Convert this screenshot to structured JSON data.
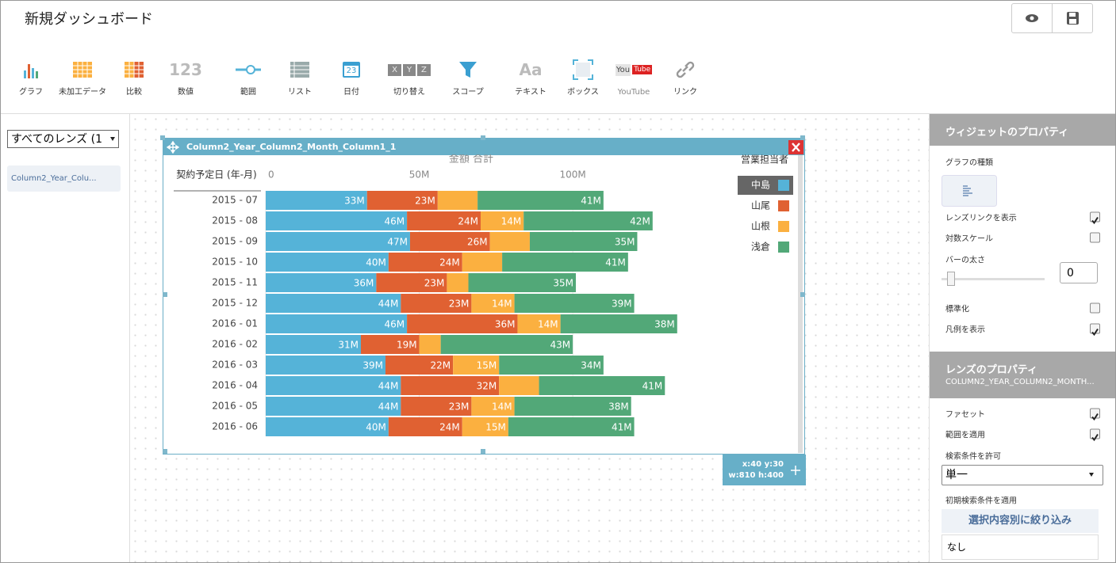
{
  "header": {
    "title": "新規ダッシュボード"
  },
  "toolbar": [
    {
      "label": "グラフ"
    },
    {
      "label": "未加工データ"
    },
    {
      "label": "比較"
    },
    {
      "label": "数値",
      "icon_text": [
        "123"
      ]
    },
    {
      "label": "範囲"
    },
    {
      "label": "リスト"
    },
    {
      "label": "日付",
      "icon_text": [
        "23"
      ]
    },
    {
      "label": "切り替え",
      "icon_text": [
        "X",
        "Y",
        "Z"
      ]
    },
    {
      "label": "スコープ"
    },
    {
      "label": "テキスト",
      "icon_text": [
        "Aa"
      ]
    },
    {
      "label": "ボックス"
    },
    {
      "label": "YouTube",
      "icon_text": [
        "You",
        "Tube"
      ]
    },
    {
      "label": "リンク"
    }
  ],
  "lens_panel": {
    "filter": "すべてのレンズ (1",
    "lenses": [
      "Column2_Year_Colu..."
    ]
  },
  "widget": {
    "title": "Column2_Year_Column2_Month_Column1_1",
    "position": "x:40 y:30",
    "size": "w:810 h:400"
  },
  "chart_data": {
    "type": "stacked-bar-horizontal",
    "x_label": "金額 合計",
    "y_label": "契約予定日 (年-月)",
    "legend_title": "営業担当者",
    "categories": [
      "2015 - 07",
      "2015 - 08",
      "2015 - 09",
      "2015 - 10",
      "2015 - 11",
      "2015 - 12",
      "2016 - 01",
      "2016 - 02",
      "2016 - 03",
      "2016 - 04",
      "2016 - 05",
      "2016 - 06"
    ],
    "series": [
      {
        "name": "中島",
        "color": "#55b3d8",
        "values": [
          33,
          46,
          47,
          40,
          36,
          44,
          46,
          31,
          39,
          44,
          44,
          40
        ],
        "value_labels": [
          "33M",
          "46M",
          "47M",
          "40M",
          "36M",
          "44M",
          "46M",
          "31M",
          "39M",
          "44M",
          "44M",
          "40M"
        ]
      },
      {
        "name": "山尾",
        "color": "#e06132",
        "values": [
          23,
          24,
          26,
          24,
          23,
          23,
          36,
          19,
          22,
          32,
          23,
          24
        ],
        "value_labels": [
          "23M",
          "24M",
          "26M",
          "24M",
          "23M",
          "23M",
          "36M",
          "19M",
          "22M",
          "32M",
          "23M",
          "24M"
        ]
      },
      {
        "name": "山根",
        "color": "#fbb040",
        "values": [
          13,
          14,
          13,
          13,
          7,
          14,
          14,
          7,
          15,
          13,
          14,
          15
        ],
        "value_labels": [
          null,
          "14M",
          null,
          null,
          null,
          "14M",
          "14M",
          null,
          "15M",
          null,
          "14M",
          "15M"
        ]
      },
      {
        "name": "浅倉",
        "color": "#52a878",
        "values": [
          41,
          42,
          35,
          41,
          35,
          39,
          38,
          43,
          34,
          41,
          38,
          41
        ],
        "value_labels": [
          "41M",
          "42M",
          "35M",
          "41M",
          "35M",
          "39M",
          "38M",
          "43M",
          "34M",
          "41M",
          "38M",
          "41M"
        ]
      }
    ],
    "xlim": [
      0,
      140
    ],
    "xticks": [
      0,
      {
        "value": 50,
        "label": "50M"
      },
      {
        "value": 100,
        "label": "100M"
      }
    ],
    "grid": true
  },
  "widget_properties": {
    "title": "ウィジェットのプロパティ",
    "chart_type_label": "グラフの種類",
    "items": [
      {
        "label": "レンズリンクを表示",
        "checked": true
      },
      {
        "label": "対数スケール",
        "checked": false
      },
      {
        "label": "バーの太さ",
        "value": 0
      },
      {
        "label": "標準化",
        "checked": false
      },
      {
        "label": "凡例を表示",
        "checked": true
      }
    ]
  },
  "lens_properties": {
    "title": "レンズのプロパティ",
    "subtitle": "COLUMN2_YEAR_COLUMN2_MONTH...",
    "items": [
      {
        "label": "ファセット",
        "checked": true
      },
      {
        "label": "範囲を適用",
        "checked": true
      }
    ],
    "search_label": "検索条件を許可",
    "search_mode": "単一",
    "initial_label": "初期検索条件を適用",
    "filter_button": "選択内容別に絞り込み",
    "filter_value": "なし"
  }
}
